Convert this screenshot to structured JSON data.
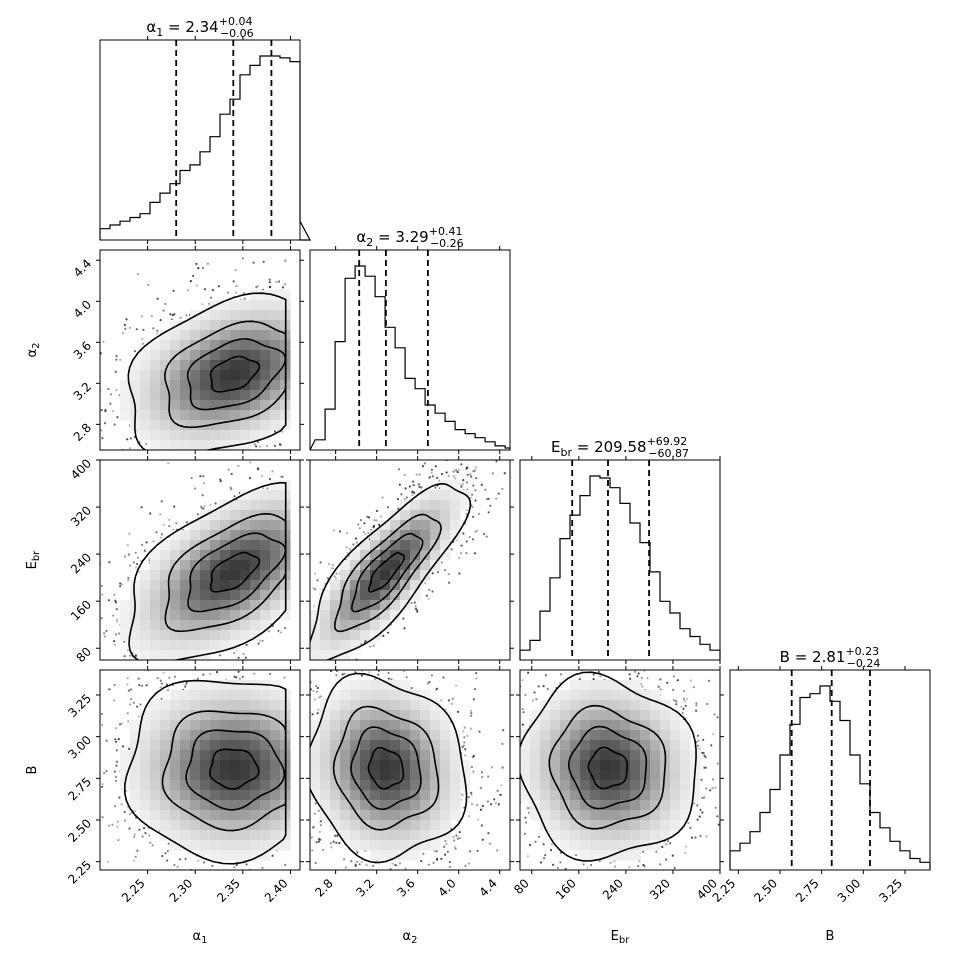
{
  "chart_data": {
    "type": "corner",
    "parameters": [
      {
        "name": "α1",
        "label_main": "α",
        "label_sub": "1",
        "median": 2.34,
        "err_plus": 0.04,
        "err_minus": 0.06,
        "range": [
          2.2,
          2.41
        ],
        "ticks": [
          "2.25",
          "2.30",
          "2.35",
          "2.40"
        ],
        "quantiles": [
          2.28,
          2.34,
          2.38
        ],
        "hist_edges_start": 2.2,
        "hist_edges_step": 0.0105,
        "hist_counts": [
          0.06,
          0.08,
          0.1,
          0.12,
          0.14,
          0.2,
          0.25,
          0.3,
          0.37,
          0.4,
          0.47,
          0.55,
          0.67,
          0.75,
          0.88,
          0.93,
          0.98,
          0.98,
          0.97,
          0.95,
          0.1,
          0.0
        ]
      },
      {
        "name": "α2",
        "label_main": "α",
        "label_sub": "2",
        "median": 3.29,
        "err_plus": 0.41,
        "err_minus": 0.26,
        "range": [
          2.55,
          4.5
        ],
        "ticks": [
          "2.8",
          "3.2",
          "3.6",
          "4.0",
          "4.4"
        ],
        "quantiles": [
          3.03,
          3.29,
          3.7
        ],
        "hist_edges_start": 2.6,
        "hist_edges_step": 0.0975,
        "hist_counts": [
          0.05,
          0.2,
          0.53,
          0.84,
          0.9,
          0.85,
          0.75,
          0.6,
          0.5,
          0.35,
          0.3,
          0.22,
          0.18,
          0.14,
          0.1,
          0.08,
          0.06,
          0.04,
          0.02,
          0.01
        ]
      },
      {
        "name": "Ebr",
        "label_main": "E",
        "label_sub": "br",
        "median": 209.58,
        "err_plus": 69.92,
        "err_minus": 60.87,
        "range": [
          60,
          400
        ],
        "ticks": [
          "80",
          "160",
          "240",
          "320",
          "400"
        ],
        "quantiles": [
          148.71,
          209.58,
          279.5
        ],
        "hist_edges_start": 60,
        "hist_edges_step": 17,
        "hist_counts": [
          0.05,
          0.1,
          0.25,
          0.42,
          0.62,
          0.74,
          0.84,
          0.94,
          0.93,
          0.88,
          0.8,
          0.7,
          0.6,
          0.45,
          0.3,
          0.24,
          0.16,
          0.12,
          0.08,
          0.05
        ]
      },
      {
        "name": "B",
        "label_main": "B",
        "label_sub": "",
        "median": 2.81,
        "err_plus": 0.23,
        "err_minus": 0.24,
        "range": [
          2.2,
          3.4
        ],
        "ticks": [
          "2.25",
          "2.50",
          "2.75",
          "3.00",
          "3.25"
        ],
        "quantiles": [
          2.57,
          2.81,
          3.04
        ],
        "hist_edges_start": 2.2,
        "hist_edges_step": 0.06,
        "hist_counts": [
          0.1,
          0.14,
          0.2,
          0.3,
          0.42,
          0.6,
          0.76,
          0.9,
          0.92,
          0.96,
          0.88,
          0.78,
          0.6,
          0.45,
          0.3,
          0.22,
          0.15,
          0.1,
          0.06,
          0.04
        ]
      }
    ],
    "y_ticks": {
      "α2": [
        "2.8",
        "3.2",
        "3.6",
        "4.0",
        "4.4"
      ],
      "Ebr": [
        "80",
        "160",
        "240",
        "320",
        "400"
      ],
      "B": [
        "2.25",
        "2.50",
        "2.75",
        "3.00",
        "3.25"
      ]
    },
    "scatter_points_shown": true,
    "contour_levels": 4,
    "quantile_line_style": "dashed"
  }
}
